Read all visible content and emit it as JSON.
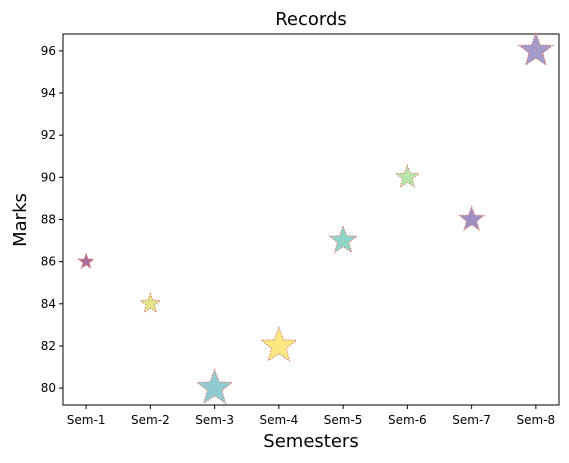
{
  "chart_data": {
    "type": "scatter",
    "title": "Records",
    "xlabel": "Semesters",
    "ylabel": "Marks",
    "categories": [
      "Sem-1",
      "Sem-2",
      "Sem-3",
      "Sem-4",
      "Sem-5",
      "Sem-6",
      "Sem-7",
      "Sem-8"
    ],
    "values": [
      86,
      84,
      80,
      82,
      87,
      90,
      88,
      96
    ],
    "marker": "star",
    "marker_sizes": [
      1,
      1.3,
      2.3,
      2.3,
      1.8,
      1.5,
      1.6,
      2.2
    ],
    "point_colors": [
      "#a86c9a",
      "#dfe68a",
      "#8fcbd0",
      "#fde783",
      "#8fd6c8",
      "#b5e6a9",
      "#9c8fc4",
      "#a29ac8"
    ],
    "edge_color": "#e07a6a",
    "ylim": [
      79.2,
      96.8
    ],
    "yticks": [
      80,
      82,
      84,
      86,
      88,
      90,
      92,
      94,
      96
    ],
    "grid": false,
    "legend": "none"
  }
}
